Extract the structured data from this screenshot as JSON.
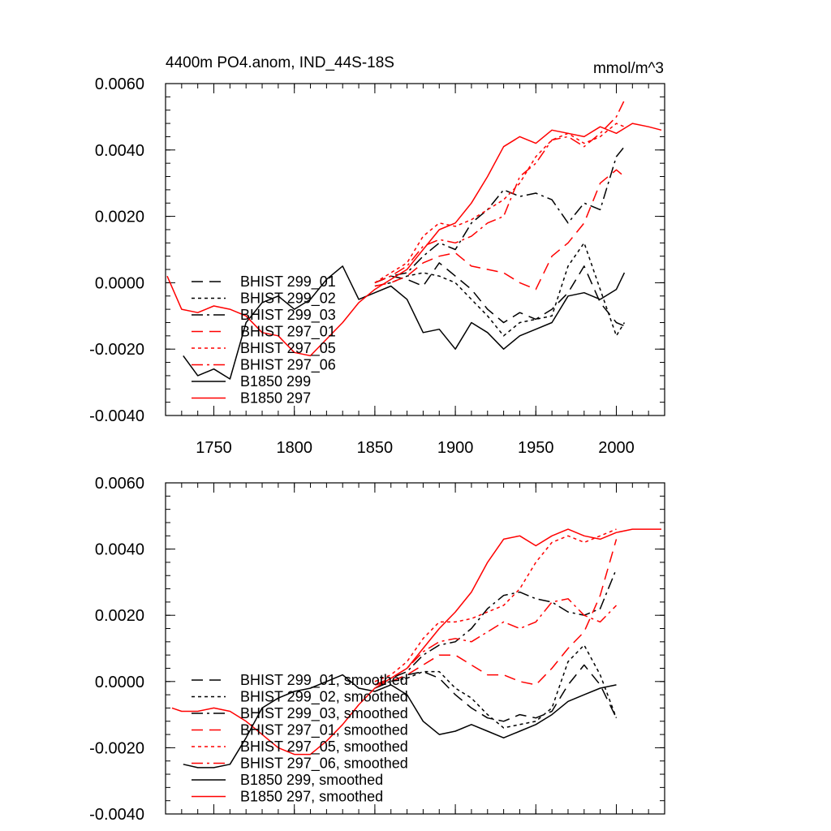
{
  "chart_data": [
    {
      "type": "line",
      "title": "4400m PO4.anom, IND_44S-18S",
      "units": "mmol/m^3",
      "xlim": [
        1720,
        2030
      ],
      "ylim": [
        -0.004,
        0.006
      ],
      "xticks": [
        1750,
        1800,
        1850,
        1900,
        1950,
        2000
      ],
      "yticks": [
        -0.004,
        -0.002,
        0.0,
        0.002,
        0.004,
        0.006
      ],
      "ytick_labels": [
        "-0.0040",
        "-0.0020",
        "0.0000",
        "0.0020",
        "0.0040",
        "0.0060"
      ],
      "xtick_labels": [
        "1750",
        "1800",
        "1850",
        "1900",
        "1950",
        "2000"
      ],
      "legend": "bottom-left",
      "series": [
        {
          "name": "BHIST 299_01",
          "color": "#000000",
          "dash": "long",
          "x": [
            1850,
            1860,
            1870,
            1880,
            1890,
            1900,
            1910,
            1920,
            1930,
            1940,
            1950,
            1960,
            1970,
            1980,
            1990,
            2000,
            2005
          ],
          "y": [
            0.0,
            0.0002,
            0.0001,
            -0.0001,
            0.0006,
            0.0002,
            -0.0002,
            -0.0008,
            -0.0012,
            -0.0009,
            -0.0011,
            -0.0008,
            -0.0003,
            0.0005,
            -0.0006,
            -0.0012,
            -0.0013
          ]
        },
        {
          "name": "BHIST 299_02",
          "color": "#000000",
          "dash": "short",
          "x": [
            1850,
            1860,
            1870,
            1880,
            1890,
            1900,
            1910,
            1920,
            1930,
            1940,
            1950,
            1960,
            1970,
            1980,
            1990,
            2000,
            2005
          ],
          "y": [
            -0.0001,
            0.0,
            0.0002,
            0.0003,
            0.0002,
            0.0,
            -0.0005,
            -0.001,
            -0.0016,
            -0.0012,
            -0.0011,
            -0.001,
            0.0005,
            0.0012,
            -0.0002,
            -0.0016,
            -0.0012
          ]
        },
        {
          "name": "BHIST 299_03",
          "color": "#000000",
          "dash": "dashdot",
          "x": [
            1850,
            1860,
            1870,
            1880,
            1890,
            1900,
            1910,
            1920,
            1930,
            1940,
            1950,
            1960,
            1970,
            1980,
            1990,
            2000,
            2005
          ],
          "y": [
            0.0,
            0.0002,
            0.0003,
            0.0008,
            0.0012,
            0.001,
            0.0018,
            0.0022,
            0.0028,
            0.0026,
            0.0027,
            0.0025,
            0.0018,
            0.0024,
            0.0022,
            0.0038,
            0.0041
          ]
        },
        {
          "name": "BHIST 297_01",
          "color": "#ff0000",
          "dash": "long",
          "x": [
            1850,
            1860,
            1870,
            1880,
            1890,
            1900,
            1910,
            1920,
            1930,
            1940,
            1950,
            1960,
            1970,
            1980,
            1990,
            2000,
            2005
          ],
          "y": [
            -0.0001,
            0.0,
            0.0002,
            0.0006,
            0.0008,
            0.0009,
            0.0005,
            0.0004,
            0.0003,
            0.0,
            -0.0002,
            0.0008,
            0.0012,
            0.0018,
            0.003,
            0.0034,
            0.0032
          ]
        },
        {
          "name": "BHIST 297_05",
          "color": "#ff0000",
          "dash": "short",
          "x": [
            1850,
            1860,
            1870,
            1880,
            1890,
            1900,
            1910,
            1920,
            1930,
            1940,
            1950,
            1960,
            1970,
            1980,
            1990,
            2000,
            2005
          ],
          "y": [
            0.0,
            0.0003,
            0.0006,
            0.0014,
            0.0018,
            0.0017,
            0.0019,
            0.0022,
            0.0025,
            0.003,
            0.0038,
            0.0043,
            0.0045,
            0.0042,
            0.0044,
            0.0048,
            0.0047
          ]
        },
        {
          "name": "BHIST 297_06",
          "color": "#ff0000",
          "dash": "dashdot",
          "x": [
            1850,
            1860,
            1870,
            1880,
            1890,
            1900,
            1910,
            1920,
            1930,
            1940,
            1950,
            1960,
            1970,
            1980,
            1990,
            2000,
            2005
          ],
          "y": [
            0.0,
            0.0002,
            0.0005,
            0.0011,
            0.0013,
            0.0012,
            0.0014,
            0.0018,
            0.002,
            0.0032,
            0.0036,
            0.0043,
            0.0044,
            0.0041,
            0.0045,
            0.005,
            0.0055
          ]
        },
        {
          "name": "B1850 299",
          "color": "#000000",
          "dash": "solid",
          "x": [
            1731,
            1740,
            1750,
            1760,
            1770,
            1780,
            1790,
            1800,
            1810,
            1820,
            1830,
            1840,
            1850,
            1860,
            1870,
            1880,
            1890,
            1900,
            1910,
            1920,
            1930,
            1940,
            1950,
            1960,
            1970,
            1980,
            1990,
            2000,
            2005
          ],
          "y": [
            -0.0022,
            -0.0028,
            -0.0026,
            -0.0029,
            -0.0012,
            -0.0006,
            -0.0004,
            -0.0008,
            -0.0005,
            0.0001,
            0.0005,
            -0.0005,
            -0.0003,
            -0.0001,
            -0.0005,
            -0.0015,
            -0.0014,
            -0.002,
            -0.0012,
            -0.0015,
            -0.002,
            -0.0016,
            -0.0014,
            -0.0012,
            -0.0004,
            -0.0003,
            -0.0005,
            -0.0002,
            0.0003
          ]
        },
        {
          "name": "B1850 297",
          "color": "#ff0000",
          "dash": "solid",
          "x": [
            1721,
            1730,
            1740,
            1750,
            1760,
            1770,
            1780,
            1790,
            1800,
            1810,
            1820,
            1830,
            1840,
            1850,
            1860,
            1870,
            1880,
            1890,
            1900,
            1910,
            1920,
            1930,
            1940,
            1950,
            1960,
            1970,
            1980,
            1990,
            2000,
            2010,
            2020,
            2028
          ],
          "y": [
            0.0002,
            -0.0008,
            -0.0009,
            -0.0007,
            -0.0008,
            -0.001,
            -0.0015,
            -0.0016,
            -0.0021,
            -0.0022,
            -0.0017,
            -0.0012,
            -0.0006,
            -0.0002,
            0.0001,
            0.0004,
            0.001,
            0.0016,
            0.0018,
            0.0024,
            0.0032,
            0.0041,
            0.0044,
            0.0042,
            0.0046,
            0.0045,
            0.0044,
            0.0047,
            0.0045,
            0.0048,
            0.0047,
            0.0046
          ]
        }
      ]
    },
    {
      "type": "line",
      "title": "",
      "xlim": [
        1720,
        2030
      ],
      "ylim": [
        -0.004,
        0.006
      ],
      "yticks": [
        -0.004,
        -0.002,
        0.0,
        0.002,
        0.004,
        0.006
      ],
      "ytick_labels": [
        "-0.0040",
        "-0.0020",
        "0.0000",
        "0.0020",
        "0.0040",
        "0.0060"
      ],
      "legend": "bottom-left",
      "series": [
        {
          "name": "BHIST 299_01, smoothed",
          "color": "#000000",
          "dash": "long",
          "x": [
            1850,
            1860,
            1870,
            1880,
            1890,
            1900,
            1910,
            1920,
            1930,
            1940,
            1950,
            1960,
            1970,
            1980,
            1990,
            2000
          ],
          "y": [
            -0.0002,
            0.0,
            0.0002,
            0.0003,
            0.0001,
            -0.0004,
            -0.0008,
            -0.0011,
            -0.0012,
            -0.001,
            -0.0011,
            -0.0009,
            -0.0001,
            0.0005,
            -0.0001,
            -0.0011
          ]
        },
        {
          "name": "BHIST 299_02, smoothed",
          "color": "#000000",
          "dash": "short",
          "x": [
            1850,
            1860,
            1870,
            1880,
            1890,
            1900,
            1910,
            1920,
            1930,
            1940,
            1950,
            1960,
            1970,
            1980,
            1990,
            2000
          ],
          "y": [
            -0.0001,
            0.0,
            0.0001,
            0.0003,
            0.0003,
            -0.0002,
            -0.0005,
            -0.001,
            -0.0014,
            -0.0013,
            -0.0012,
            -0.0008,
            0.0006,
            0.0011,
            0.0002,
            -0.0011
          ]
        },
        {
          "name": "BHIST 299_03, smoothed",
          "color": "#000000",
          "dash": "dashdot",
          "x": [
            1850,
            1860,
            1870,
            1880,
            1890,
            1900,
            1910,
            1920,
            1930,
            1940,
            1950,
            1960,
            1970,
            1980,
            1990,
            2000
          ],
          "y": [
            -0.0001,
            0.0001,
            0.0003,
            0.0008,
            0.0011,
            0.0012,
            0.0016,
            0.0022,
            0.0026,
            0.0027,
            0.0025,
            0.0024,
            0.0021,
            0.002,
            0.0022,
            0.0034
          ]
        },
        {
          "name": "BHIST 297_01, smoothed",
          "color": "#ff0000",
          "dash": "long",
          "x": [
            1850,
            1860,
            1870,
            1880,
            1890,
            1900,
            1910,
            1920,
            1930,
            1940,
            1950,
            1960,
            1970,
            1980,
            1990,
            2000
          ],
          "y": [
            -0.0001,
            0.0,
            0.0002,
            0.0005,
            0.0008,
            0.0008,
            0.0005,
            0.0002,
            0.0002,
            0.0,
            -0.0001,
            0.0004,
            0.001,
            0.0015,
            0.0026,
            0.0043
          ]
        },
        {
          "name": "BHIST 297_05, smoothed",
          "color": "#ff0000",
          "dash": "short",
          "x": [
            1850,
            1860,
            1870,
            1880,
            1890,
            1900,
            1910,
            1920,
            1930,
            1940,
            1950,
            1960,
            1970,
            1980,
            1990,
            2000
          ],
          "y": [
            0.0,
            0.0002,
            0.0006,
            0.0013,
            0.0018,
            0.0018,
            0.0019,
            0.0021,
            0.0023,
            0.0028,
            0.0036,
            0.0042,
            0.0044,
            0.0042,
            0.0044,
            0.0046
          ]
        },
        {
          "name": "BHIST 297_06, smoothed",
          "color": "#ff0000",
          "dash": "dashdot",
          "x": [
            1850,
            1860,
            1870,
            1880,
            1890,
            1900,
            1910,
            1920,
            1930,
            1940,
            1950,
            1960,
            1970,
            1980,
            1990,
            2000
          ],
          "y": [
            -0.0001,
            0.0001,
            0.0004,
            0.0009,
            0.0012,
            0.0013,
            0.0012,
            0.0015,
            0.0018,
            0.0016,
            0.0018,
            0.0024,
            0.0025,
            0.002,
            0.0018,
            0.0023
          ]
        },
        {
          "name": "B1850 299, smoothed",
          "color": "#000000",
          "dash": "solid",
          "x": [
            1731,
            1740,
            1750,
            1760,
            1770,
            1780,
            1790,
            1800,
            1810,
            1820,
            1830,
            1840,
            1850,
            1860,
            1870,
            1880,
            1890,
            1900,
            1910,
            1920,
            1930,
            1940,
            1950,
            1960,
            1970,
            1980,
            1990,
            2000
          ],
          "y": [
            -0.0025,
            -0.0026,
            -0.0026,
            -0.0025,
            -0.0017,
            -0.0008,
            -0.0005,
            -0.0003,
            -0.0002,
            0.0,
            0.0002,
            -0.0002,
            -0.0003,
            -0.0001,
            -0.0004,
            -0.0012,
            -0.0016,
            -0.0015,
            -0.0013,
            -0.0015,
            -0.0017,
            -0.0015,
            -0.0013,
            -0.001,
            -0.0006,
            -0.0004,
            -0.0002,
            -0.0001
          ]
        },
        {
          "name": "B1850 297, smoothed",
          "color": "#ff0000",
          "dash": "solid",
          "x": [
            1724,
            1730,
            1740,
            1750,
            1760,
            1770,
            1780,
            1790,
            1800,
            1810,
            1820,
            1830,
            1840,
            1850,
            1860,
            1870,
            1880,
            1890,
            1900,
            1910,
            1920,
            1930,
            1940,
            1950,
            1960,
            1970,
            1980,
            1990,
            2000,
            2010,
            2020,
            2028
          ],
          "y": [
            -0.0008,
            -0.0009,
            -0.0009,
            -0.0008,
            -0.0009,
            -0.0012,
            -0.0016,
            -0.002,
            -0.0022,
            -0.0022,
            -0.0018,
            -0.0013,
            -0.0007,
            -0.0002,
            0.0001,
            0.0004,
            0.001,
            0.0016,
            0.0021,
            0.0027,
            0.0036,
            0.0043,
            0.0044,
            0.0041,
            0.0044,
            0.0046,
            0.0044,
            0.0043,
            0.0045,
            0.0046,
            0.0046,
            0.0046
          ]
        }
      ]
    }
  ]
}
